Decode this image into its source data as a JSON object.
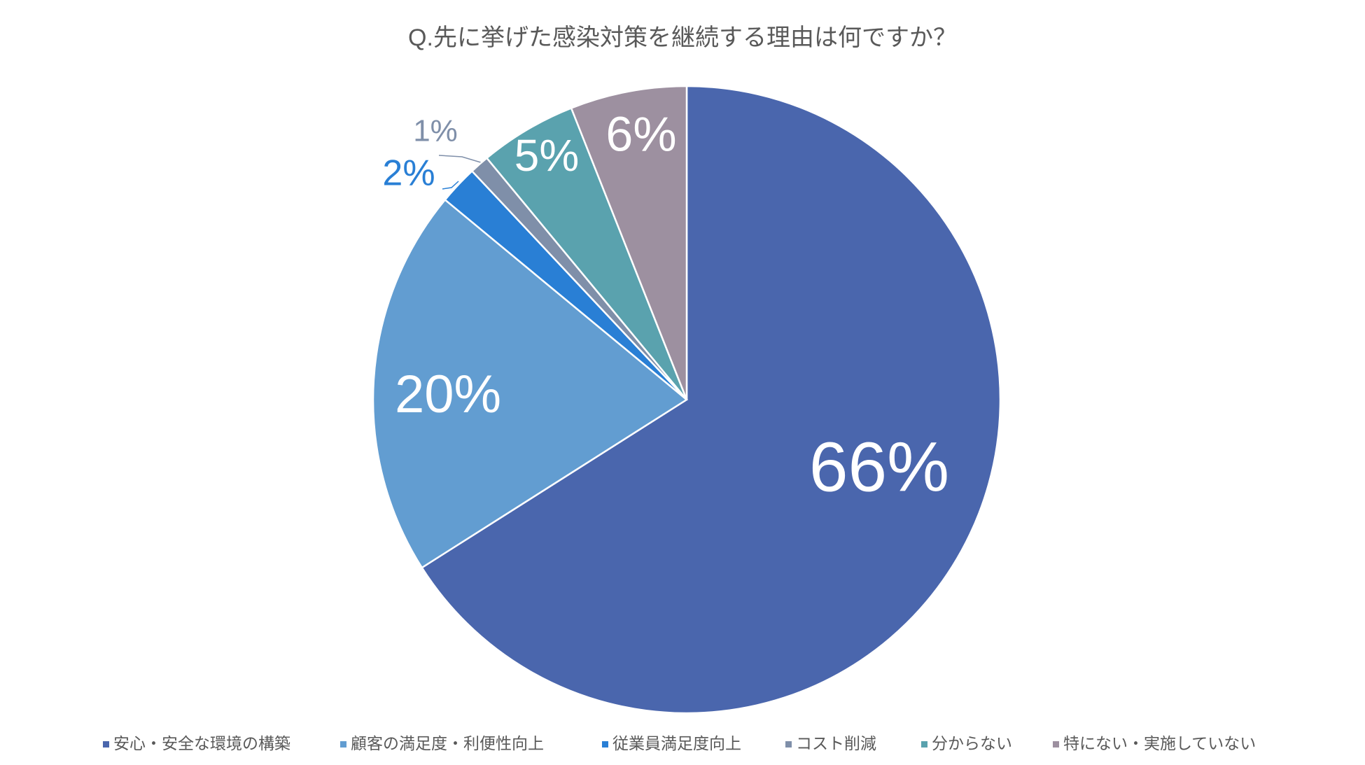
{
  "chart_data": {
    "type": "pie",
    "title": "Q.先に挙げた感染対策を継続する理由は何ですか？",
    "categories": [
      "安心・安全な環境の構築",
      "顧客の満足度・利便性向上",
      "従業員満足度向上",
      "コスト削減",
      "分からない",
      "特にない・実施していない"
    ],
    "values": [
      66,
      20,
      2,
      1,
      5,
      6
    ],
    "value_labels": [
      "66%",
      "20%",
      "2%",
      "1%",
      "5%",
      "6%"
    ],
    "colors": [
      "#4a66ad",
      "#629dd1",
      "#297fd5",
      "#7f8fa9",
      "#5aa2ae",
      "#9d90a0"
    ],
    "legend": "bottom"
  }
}
